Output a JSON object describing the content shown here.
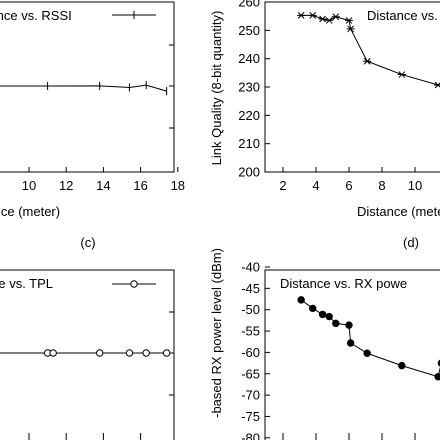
{
  "chart_data": [
    {
      "panel": "(c) left-top, cropped",
      "type": "line",
      "xlabel": "Distance (meter)",
      "ylabel": "",
      "xlim": [
        8,
        18
      ],
      "xticks": [
        "10",
        "12",
        "14",
        "16",
        "18"
      ],
      "legend": {
        "label": "Distance vs. RSSI",
        "placement": "top-right"
      },
      "series": [
        {
          "name": "Distance vs. RSSI",
          "marker": "plus",
          "points": [
            [
              8.1,
              0
            ],
            [
              11.0,
              0
            ],
            [
              13.8,
              0.05
            ],
            [
              15.4,
              -0.5
            ],
            [
              16.3,
              0.3
            ],
            [
              17.4,
              -1.7
            ]
          ]
        }
      ],
      "caption": "(c)"
    },
    {
      "panel": "(d) right-top, cropped",
      "type": "line",
      "xlabel": "Distance (meter)",
      "ylabel": "Link Quality (8-bit quantity)",
      "xlim": [
        2,
        12
      ],
      "ylim": [
        200,
        260
      ],
      "xticks": [
        "2",
        "4",
        "6",
        "8",
        "10"
      ],
      "yticks": [
        "200",
        "210",
        "220",
        "230",
        "240",
        "250",
        "260"
      ],
      "legend": {
        "label": "Distance vs. LQI",
        "placement": "top-right"
      },
      "series": [
        {
          "name": "Distance vs. LQI",
          "marker": "asterisk",
          "points": [
            [
              3.1,
              255.3
            ],
            [
              3.8,
              255.3
            ],
            [
              4.4,
              254.0
            ],
            [
              4.8,
              253.5
            ],
            [
              5.2,
              254.8
            ],
            [
              6.0,
              253.5
            ],
            [
              6.1,
              250.5
            ],
            [
              7.1,
              239.1
            ],
            [
              9.2,
              234.4
            ],
            [
              11.4,
              230.7
            ]
          ]
        }
      ],
      "caption": "(d)"
    },
    {
      "panel": "(e) left-bottom, cropped",
      "type": "line",
      "xlabel": "",
      "ylabel": "",
      "legend": {
        "label": "Distance vs. TPL",
        "placement": "top-right"
      },
      "series": [
        {
          "name": "Distance vs. TPL",
          "marker": "open-circle",
          "points": [
            [
              8.1,
              0
            ],
            [
              11.0,
              0
            ],
            [
              11.3,
              0
            ],
            [
              13.8,
              0
            ],
            [
              15.4,
              0
            ],
            [
              16.3,
              0
            ],
            [
              17.4,
              0
            ]
          ]
        }
      ]
    },
    {
      "panel": "(f) right-bottom, cropped",
      "type": "line",
      "xlabel": "",
      "ylabel": "-based RX power level (dBm)",
      "ylim": [
        -80,
        -40
      ],
      "yticks": [
        "-40",
        "-45",
        "-50",
        "-55",
        "-60",
        "-65",
        "-70",
        "-75",
        "-80"
      ],
      "legend": {
        "label": "Distance vs. RX powe",
        "placement": "top-right"
      },
      "series": [
        {
          "name": "Distance vs. RX powe",
          "marker": "filled-circle",
          "points": [
            [
              3.1,
              -47.7
            ],
            [
              3.8,
              -49.7
            ],
            [
              4.4,
              -51.1
            ],
            [
              4.8,
              -51.6
            ],
            [
              5.2,
              -53.2
            ],
            [
              6.0,
              -53.6
            ],
            [
              6.1,
              -57.8
            ],
            [
              7.1,
              -60.2
            ],
            [
              9.2,
              -63.1
            ],
            [
              11.4,
              -65.7
            ],
            [
              11.6,
              -62.5
            ]
          ]
        }
      ]
    }
  ]
}
